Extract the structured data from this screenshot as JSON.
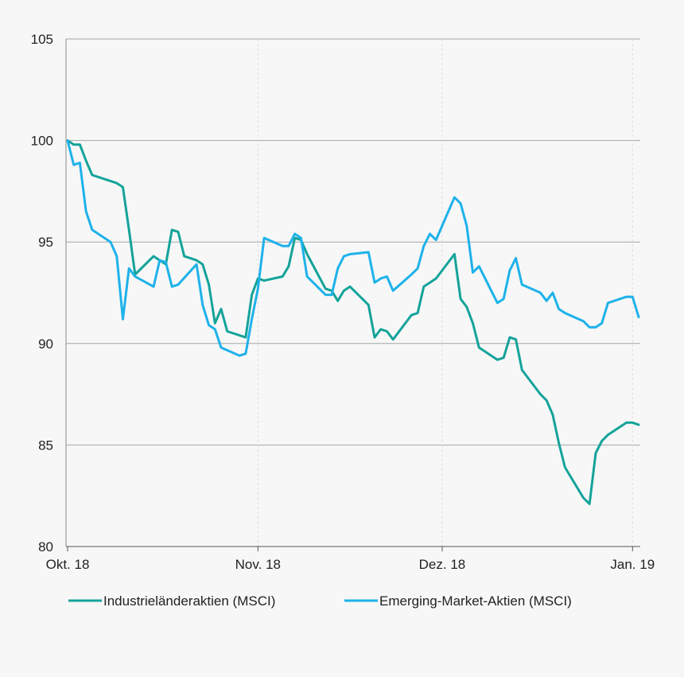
{
  "colors": {
    "background": "#f7f7f7",
    "grid": "#a6a6a6",
    "series_industrial": "#14a39a",
    "series_emerging": "#1eb2ea"
  },
  "chart_data": {
    "type": "line",
    "ylim": [
      80,
      105
    ],
    "yticks": [
      "80",
      "85",
      "90",
      "95",
      "100",
      "105"
    ],
    "xticks": [
      {
        "label": "Okt. 18",
        "date": "2018-10-01"
      },
      {
        "label": "Nov. 18",
        "date": "2018-11-01"
      },
      {
        "label": "Dez. 18",
        "date": "2018-12-01"
      },
      {
        "label": "Jan. 19",
        "date": "2019-01-01"
      }
    ],
    "grid": true,
    "legend": "bottom",
    "series": [
      {
        "name": "Industrieländeraktien (MSCI)",
        "color": "#14a39a",
        "points": [
          [
            "2018-10-01",
            100.0
          ],
          [
            "2018-10-02",
            99.8
          ],
          [
            "2018-10-03",
            99.8
          ],
          [
            "2018-10-04",
            99.0
          ],
          [
            "2018-10-05",
            98.3
          ],
          [
            "2018-10-08",
            98.0
          ],
          [
            "2018-10-09",
            97.9
          ],
          [
            "2018-10-10",
            97.7
          ],
          [
            "2018-10-11",
            95.6
          ],
          [
            "2018-10-12",
            93.4
          ],
          [
            "2018-10-15",
            94.3
          ],
          [
            "2018-10-16",
            94.1
          ],
          [
            "2018-10-17",
            93.9
          ],
          [
            "2018-10-18",
            95.6
          ],
          [
            "2018-10-19",
            95.5
          ],
          [
            "2018-10-20",
            94.3
          ],
          [
            "2018-10-22",
            94.1
          ],
          [
            "2018-10-23",
            93.9
          ],
          [
            "2018-10-24",
            92.9
          ],
          [
            "2018-10-25",
            91.0
          ],
          [
            "2018-10-26",
            91.7
          ],
          [
            "2018-10-27",
            90.6
          ],
          [
            "2018-10-29",
            90.4
          ],
          [
            "2018-10-30",
            90.3
          ],
          [
            "2018-10-31",
            92.4
          ],
          [
            "2018-11-01",
            93.2
          ],
          [
            "2018-11-02",
            93.1
          ],
          [
            "2018-11-05",
            93.3
          ],
          [
            "2018-11-06",
            93.8
          ],
          [
            "2018-11-07",
            95.2
          ],
          [
            "2018-11-08",
            95.1
          ],
          [
            "2018-11-09",
            94.4
          ],
          [
            "2018-11-12",
            92.7
          ],
          [
            "2018-11-13",
            92.6
          ],
          [
            "2018-11-14",
            92.1
          ],
          [
            "2018-11-15",
            92.6
          ],
          [
            "2018-11-16",
            92.8
          ],
          [
            "2018-11-19",
            91.9
          ],
          [
            "2018-11-20",
            90.3
          ],
          [
            "2018-11-21",
            90.7
          ],
          [
            "2018-11-22",
            90.6
          ],
          [
            "2018-11-23",
            90.2
          ],
          [
            "2018-11-26",
            91.4
          ],
          [
            "2018-11-27",
            91.5
          ],
          [
            "2018-11-28",
            92.8
          ],
          [
            "2018-11-29",
            93.0
          ],
          [
            "2018-11-30",
            93.2
          ],
          [
            "2018-12-03",
            94.4
          ],
          [
            "2018-12-04",
            92.2
          ],
          [
            "2018-12-05",
            91.8
          ],
          [
            "2018-12-06",
            91.0
          ],
          [
            "2018-12-07",
            89.8
          ],
          [
            "2018-12-10",
            89.2
          ],
          [
            "2018-12-11",
            89.3
          ],
          [
            "2018-12-12",
            90.3
          ],
          [
            "2018-12-13",
            90.2
          ],
          [
            "2018-12-14",
            88.7
          ],
          [
            "2018-12-17",
            87.5
          ],
          [
            "2018-12-18",
            87.2
          ],
          [
            "2018-12-19",
            86.5
          ],
          [
            "2018-12-20",
            85.1
          ],
          [
            "2018-12-21",
            83.9
          ],
          [
            "2018-12-24",
            82.4
          ],
          [
            "2018-12-25",
            82.1
          ],
          [
            "2018-12-26",
            84.6
          ],
          [
            "2018-12-27",
            85.2
          ],
          [
            "2018-12-28",
            85.5
          ],
          [
            "2018-12-31",
            86.1
          ],
          [
            "2019-01-01",
            86.1
          ],
          [
            "2019-01-02",
            86.0
          ]
        ]
      },
      {
        "name": "Emerging-Market-Aktien (MSCI)",
        "color": "#1eb2ea",
        "points": [
          [
            "2018-10-01",
            100.0
          ],
          [
            "2018-10-02",
            98.8
          ],
          [
            "2018-10-03",
            98.9
          ],
          [
            "2018-10-04",
            96.5
          ],
          [
            "2018-10-05",
            95.6
          ],
          [
            "2018-10-08",
            95.0
          ],
          [
            "2018-10-09",
            94.3
          ],
          [
            "2018-10-10",
            91.2
          ],
          [
            "2018-10-11",
            93.7
          ],
          [
            "2018-10-12",
            93.3
          ],
          [
            "2018-10-15",
            92.8
          ],
          [
            "2018-10-16",
            94.1
          ],
          [
            "2018-10-17",
            94.0
          ],
          [
            "2018-10-18",
            92.8
          ],
          [
            "2018-10-19",
            92.9
          ],
          [
            "2018-10-22",
            93.9
          ],
          [
            "2018-10-23",
            91.9
          ],
          [
            "2018-10-24",
            90.9
          ],
          [
            "2018-10-25",
            90.7
          ],
          [
            "2018-10-26",
            89.8
          ],
          [
            "2018-10-29",
            89.4
          ],
          [
            "2018-10-30",
            89.5
          ],
          [
            "2018-10-31",
            91.2
          ],
          [
            "2018-11-01",
            92.7
          ],
          [
            "2018-11-02",
            95.2
          ],
          [
            "2018-11-05",
            94.8
          ],
          [
            "2018-11-06",
            94.8
          ],
          [
            "2018-11-07",
            95.4
          ],
          [
            "2018-11-08",
            95.2
          ],
          [
            "2018-11-09",
            93.3
          ],
          [
            "2018-11-12",
            92.4
          ],
          [
            "2018-11-13",
            92.4
          ],
          [
            "2018-11-14",
            93.7
          ],
          [
            "2018-11-15",
            94.3
          ],
          [
            "2018-11-16",
            94.4
          ],
          [
            "2018-11-19",
            94.5
          ],
          [
            "2018-11-20",
            93.0
          ],
          [
            "2018-11-21",
            93.2
          ],
          [
            "2018-11-22",
            93.3
          ],
          [
            "2018-11-23",
            92.6
          ],
          [
            "2018-11-26",
            93.4
          ],
          [
            "2018-11-27",
            93.7
          ],
          [
            "2018-11-28",
            94.8
          ],
          [
            "2018-11-29",
            95.4
          ],
          [
            "2018-11-30",
            95.1
          ],
          [
            "2018-12-03",
            97.2
          ],
          [
            "2018-12-04",
            96.9
          ],
          [
            "2018-12-05",
            95.8
          ],
          [
            "2018-12-06",
            93.5
          ],
          [
            "2018-12-07",
            93.8
          ],
          [
            "2018-12-10",
            92.0
          ],
          [
            "2018-12-11",
            92.2
          ],
          [
            "2018-12-12",
            93.6
          ],
          [
            "2018-12-13",
            94.2
          ],
          [
            "2018-12-14",
            92.9
          ],
          [
            "2018-12-17",
            92.5
          ],
          [
            "2018-12-18",
            92.1
          ],
          [
            "2018-12-19",
            92.5
          ],
          [
            "2018-12-20",
            91.7
          ],
          [
            "2018-12-21",
            91.5
          ],
          [
            "2018-12-24",
            91.1
          ],
          [
            "2018-12-25",
            90.8
          ],
          [
            "2018-12-26",
            90.8
          ],
          [
            "2018-12-27",
            91.0
          ],
          [
            "2018-12-28",
            92.0
          ],
          [
            "2018-12-31",
            92.3
          ],
          [
            "2019-01-01",
            92.3
          ],
          [
            "2019-01-02",
            91.3
          ]
        ]
      }
    ]
  }
}
